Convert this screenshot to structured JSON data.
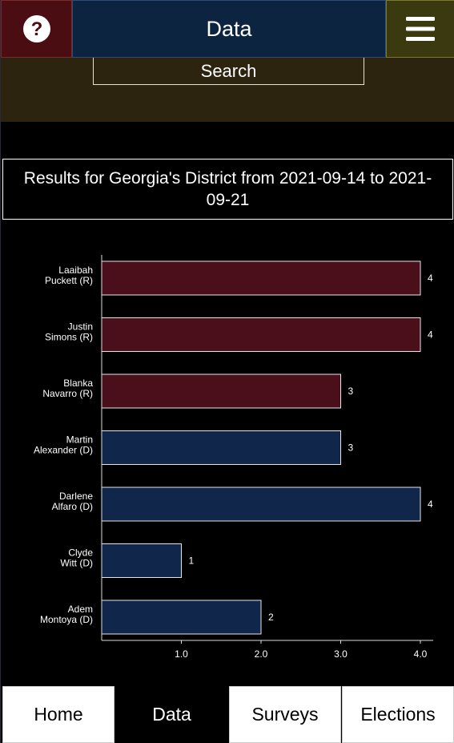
{
  "header": {
    "title": "Data",
    "help_icon": "question-circle-icon",
    "menu_icon": "hamburger-menu-icon"
  },
  "search": {
    "label": "Search"
  },
  "results": {
    "title": "Results for Georgia's  District  from 2021-09-14 to 2021-09-21"
  },
  "colors": {
    "republican": "#4a0f1a",
    "democrat": "#10264a",
    "help_bg": "#4a0d12",
    "title_bg": "#0d2440",
    "menu_bg": "#3a3910",
    "search_bg": "#2d2410"
  },
  "chart_data": {
    "type": "bar",
    "orientation": "horizontal",
    "categories": [
      [
        "Laaibah",
        "Puckett (R)"
      ],
      [
        "Justin",
        "Simons (R)"
      ],
      [
        "Blanka",
        "Navarro (R)"
      ],
      [
        "Martin",
        "Alexander (D)"
      ],
      [
        "Darlene",
        "Alfaro (D)"
      ],
      [
        "Clyde",
        "Witt (D)"
      ],
      [
        "Adem",
        "Montoya (D)"
      ]
    ],
    "parties": [
      "R",
      "R",
      "R",
      "D",
      "D",
      "D",
      "D"
    ],
    "values": [
      4,
      4,
      3,
      3,
      4,
      1,
      2
    ],
    "value_labels": [
      "4",
      "4",
      "3",
      "3",
      "4",
      "1",
      "2"
    ],
    "xticks": [
      1.0,
      2.0,
      3.0,
      4.0
    ],
    "xtick_labels": [
      "1.0",
      "2.0",
      "3.0",
      "4.0"
    ],
    "xlim": [
      0,
      4.15
    ],
    "grid": false,
    "legend": "none"
  },
  "nav": {
    "tabs": [
      {
        "label": "Home",
        "active": false
      },
      {
        "label": "Data",
        "active": true
      },
      {
        "label": "Surveys",
        "active": false
      },
      {
        "label": "Elections",
        "active": false
      }
    ]
  }
}
